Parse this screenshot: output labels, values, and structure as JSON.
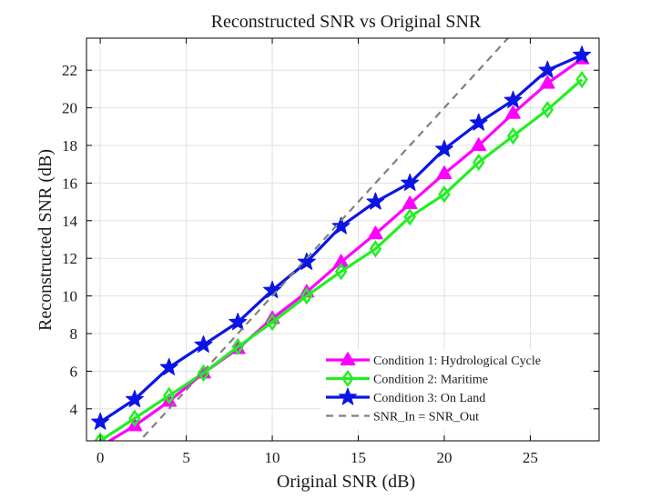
{
  "chart_data": {
    "type": "line",
    "title": "Reconstructed SNR vs Original SNR",
    "xlabel": "Original SNR (dB)",
    "ylabel": "Reconstructed SNR (dB)",
    "xlim": [
      -0.8,
      29
    ],
    "ylim": [
      2.3,
      23.7
    ],
    "xticks": [
      0,
      5,
      10,
      15,
      20,
      25
    ],
    "yticks": [
      4,
      6,
      8,
      10,
      12,
      14,
      16,
      18,
      20,
      22
    ],
    "grid": true,
    "legend_position": "lower-right",
    "series": [
      {
        "name": "Condition 1: Hydrological Cycle",
        "color": "#ff00ff",
        "marker": "triangle",
        "x": [
          0,
          2,
          4,
          6,
          8,
          10,
          12,
          14,
          16,
          18,
          20,
          22,
          24,
          26,
          28
        ],
        "y": [
          2.0,
          3.1,
          4.4,
          5.9,
          7.2,
          8.8,
          10.2,
          11.8,
          13.3,
          14.9,
          16.5,
          18.0,
          19.7,
          21.3,
          22.6
        ]
      },
      {
        "name": "Condition 2: Maritime",
        "color": "#22ee22",
        "marker": "diamond",
        "x": [
          0,
          2,
          4,
          6,
          8,
          10,
          12,
          14,
          16,
          18,
          20,
          22,
          24,
          26,
          28
        ],
        "y": [
          2.3,
          3.5,
          4.7,
          5.9,
          7.3,
          8.6,
          10.0,
          11.3,
          12.5,
          14.2,
          15.4,
          17.1,
          18.5,
          19.9,
          21.5
        ]
      },
      {
        "name": "Condition 3: On Land",
        "color": "#0a14e6",
        "marker": "star",
        "x": [
          0,
          2,
          4,
          6,
          8,
          10,
          12,
          14,
          16,
          18,
          20,
          22,
          24,
          26,
          28
        ],
        "y": [
          3.3,
          4.5,
          6.2,
          7.4,
          8.6,
          10.3,
          11.8,
          13.7,
          15.0,
          16.0,
          17.8,
          19.2,
          20.4,
          22.0,
          22.8
        ]
      },
      {
        "name": "SNR_In = SNR_Out",
        "color": "#808080",
        "marker": "none",
        "dashed": true,
        "x": [
          0,
          28
        ],
        "y": [
          0,
          28
        ]
      }
    ]
  }
}
